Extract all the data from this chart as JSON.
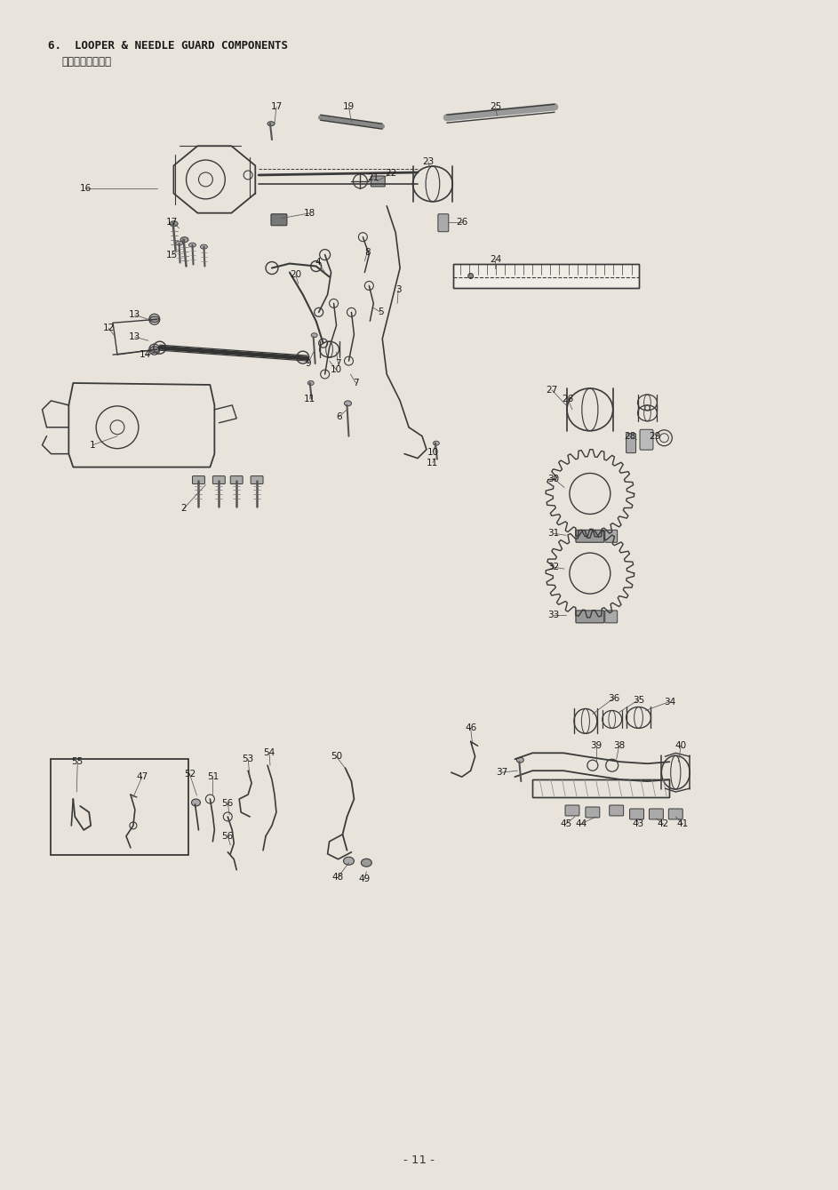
{
  "title_line1": "6.  LOOPER & NEEDLE GUARD COMPONENTS",
  "title_line2": "ルーパ・针受関係",
  "page_number": "- 11 -",
  "bg_color": "#e8e4dc",
  "line_color": "#3a3a3a",
  "figsize": [
    9.43,
    13.39
  ],
  "dpi": 100
}
